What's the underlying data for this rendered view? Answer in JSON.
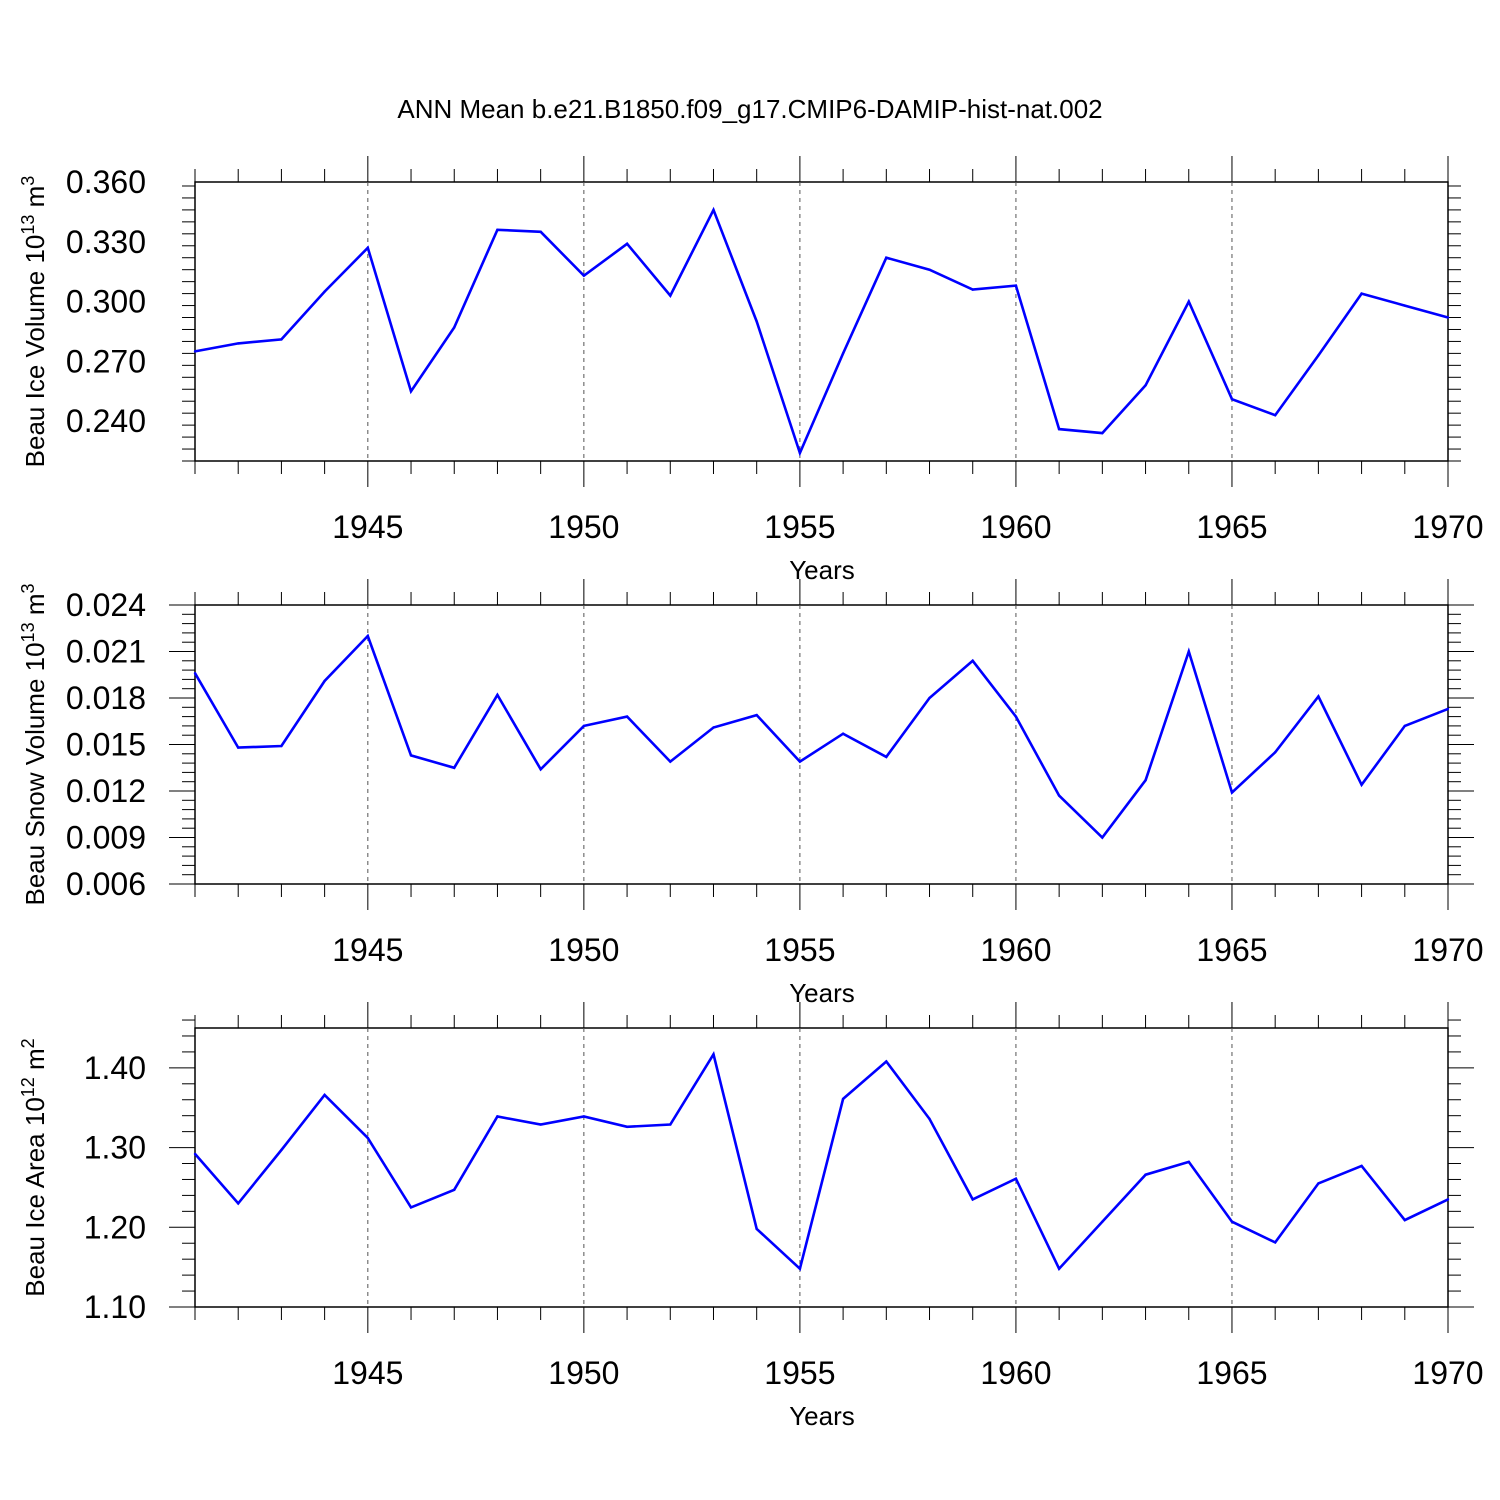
{
  "title": "ANN Mean b.e21.B1850.f09_g17.CMIP6-DAMIP-hist-nat.002",
  "colors": {
    "series": "#0000ff",
    "axis": "#000000",
    "grid": "#555555"
  },
  "chart_data": [
    {
      "type": "line",
      "ylabel": "Beau Ice Volume 10",
      "ylabel_exp": "13",
      "ylabel_unit": " m",
      "ylabel_unit_exp": "3",
      "xlabel": "Years",
      "xlim": [
        1941,
        1970
      ],
      "ylim": [
        0.22,
        0.36
      ],
      "yticks": [
        0.24,
        0.27,
        0.3,
        0.33,
        0.36
      ],
      "ytick_labels": [
        "0.240",
        "0.270",
        "0.300",
        "0.330",
        "0.360"
      ],
      "xticks": [
        1945,
        1950,
        1955,
        1960,
        1965,
        1970
      ],
      "xtick_labels": [
        "1945",
        "1950",
        "1955",
        "1960",
        "1965",
        "1970"
      ],
      "x": [
        1941,
        1942,
        1943,
        1944,
        1945,
        1946,
        1947,
        1948,
        1949,
        1950,
        1951,
        1952,
        1953,
        1954,
        1955,
        1956,
        1957,
        1958,
        1959,
        1960,
        1961,
        1962,
        1963,
        1964,
        1965,
        1966,
        1967,
        1968,
        1969,
        1970
      ],
      "values": [
        0.275,
        0.279,
        0.281,
        0.305,
        0.327,
        0.255,
        0.287,
        0.336,
        0.335,
        0.313,
        0.329,
        0.303,
        0.346,
        0.29,
        0.224,
        0.274,
        0.322,
        0.316,
        0.306,
        0.308,
        0.236,
        0.234,
        0.258,
        0.3,
        0.251,
        0.243,
        0.273,
        0.304,
        0.298,
        0.292
      ],
      "grid": "vertical dashed at major x ticks"
    },
    {
      "type": "line",
      "ylabel": "Beau Snow Volume 10",
      "ylabel_exp": "13",
      "ylabel_unit": " m",
      "ylabel_unit_exp": "3",
      "xlabel": "Years",
      "xlim": [
        1941,
        1970
      ],
      "ylim": [
        0.006,
        0.024
      ],
      "yticks": [
        0.006,
        0.009,
        0.012,
        0.015,
        0.018,
        0.021,
        0.024
      ],
      "ytick_labels": [
        "0.006",
        "0.009",
        "0.012",
        "0.015",
        "0.018",
        "0.021",
        "0.024"
      ],
      "xticks": [
        1945,
        1950,
        1955,
        1960,
        1965,
        1970
      ],
      "xtick_labels": [
        "1945",
        "1950",
        "1955",
        "1960",
        "1965",
        "1970"
      ],
      "x": [
        1941,
        1942,
        1943,
        1944,
        1945,
        1946,
        1947,
        1948,
        1949,
        1950,
        1951,
        1952,
        1953,
        1954,
        1955,
        1956,
        1957,
        1958,
        1959,
        1960,
        1961,
        1962,
        1963,
        1964,
        1965,
        1966,
        1967,
        1968,
        1969,
        1970
      ],
      "values": [
        0.0196,
        0.0148,
        0.0149,
        0.0191,
        0.022,
        0.0143,
        0.0135,
        0.0182,
        0.0134,
        0.0162,
        0.0168,
        0.0139,
        0.0161,
        0.0169,
        0.0139,
        0.0157,
        0.0142,
        0.018,
        0.0204,
        0.0168,
        0.0117,
        0.009,
        0.0127,
        0.021,
        0.0119,
        0.0145,
        0.0181,
        0.0124,
        0.0162,
        0.0173
      ],
      "grid": "vertical dashed at major x ticks"
    },
    {
      "type": "line",
      "ylabel": "Beau Ice Area 10",
      "ylabel_exp": "12",
      "ylabel_unit": " m",
      "ylabel_unit_exp": "2",
      "xlabel": "Years",
      "xlim": [
        1941,
        1970
      ],
      "ylim": [
        1.1,
        1.45
      ],
      "yticks": [
        1.1,
        1.2,
        1.3,
        1.4
      ],
      "ytick_labels": [
        "1.10",
        "1.20",
        "1.30",
        "1.40"
      ],
      "xticks": [
        1945,
        1950,
        1955,
        1960,
        1965,
        1970
      ],
      "xtick_labels": [
        "1945",
        "1950",
        "1955",
        "1960",
        "1965",
        "1970"
      ],
      "x": [
        1941,
        1942,
        1943,
        1944,
        1945,
        1946,
        1947,
        1948,
        1949,
        1950,
        1951,
        1952,
        1953,
        1954,
        1955,
        1956,
        1957,
        1958,
        1959,
        1960,
        1961,
        1962,
        1963,
        1964,
        1965,
        1966,
        1967,
        1968,
        1969,
        1970
      ],
      "values": [
        1.292,
        1.23,
        1.297,
        1.366,
        1.312,
        1.225,
        1.247,
        1.339,
        1.329,
        1.339,
        1.326,
        1.329,
        1.417,
        1.198,
        1.148,
        1.361,
        1.408,
        1.336,
        1.235,
        1.261,
        1.148,
        1.207,
        1.266,
        1.282,
        1.207,
        1.181,
        1.255,
        1.277,
        1.209,
        1.235
      ],
      "grid": "vertical dashed at major x ticks"
    }
  ]
}
